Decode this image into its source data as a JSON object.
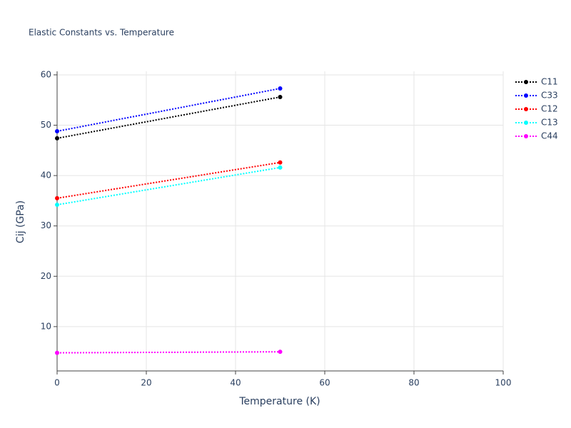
{
  "chart_data": {
    "type": "line",
    "title": "Elastic Constants vs. Temperature",
    "x_label": "Temperature (K)",
    "y_label": "Cij (GPa)",
    "x": [
      0,
      50
    ],
    "series": [
      {
        "name": "C11",
        "color": "#000000",
        "values": [
          47.4,
          55.6
        ]
      },
      {
        "name": "C33",
        "color": "#0000ff",
        "values": [
          48.8,
          57.3
        ]
      },
      {
        "name": "C12",
        "color": "#ff0000",
        "values": [
          35.5,
          42.6
        ]
      },
      {
        "name": "C13",
        "color": "#00ffff",
        "values": [
          34.2,
          41.6
        ]
      },
      {
        "name": "C44",
        "color": "#ff00ff",
        "values": [
          4.8,
          5.0
        ]
      }
    ],
    "xlim": [
      0,
      100
    ],
    "xticks": [
      0,
      20,
      40,
      60,
      80,
      100
    ],
    "ylim": [
      1.2,
      60.7
    ],
    "yticks": [
      10,
      20,
      30,
      40,
      50,
      60
    ],
    "grid": true,
    "legend": "right",
    "line_style": "dotted"
  }
}
